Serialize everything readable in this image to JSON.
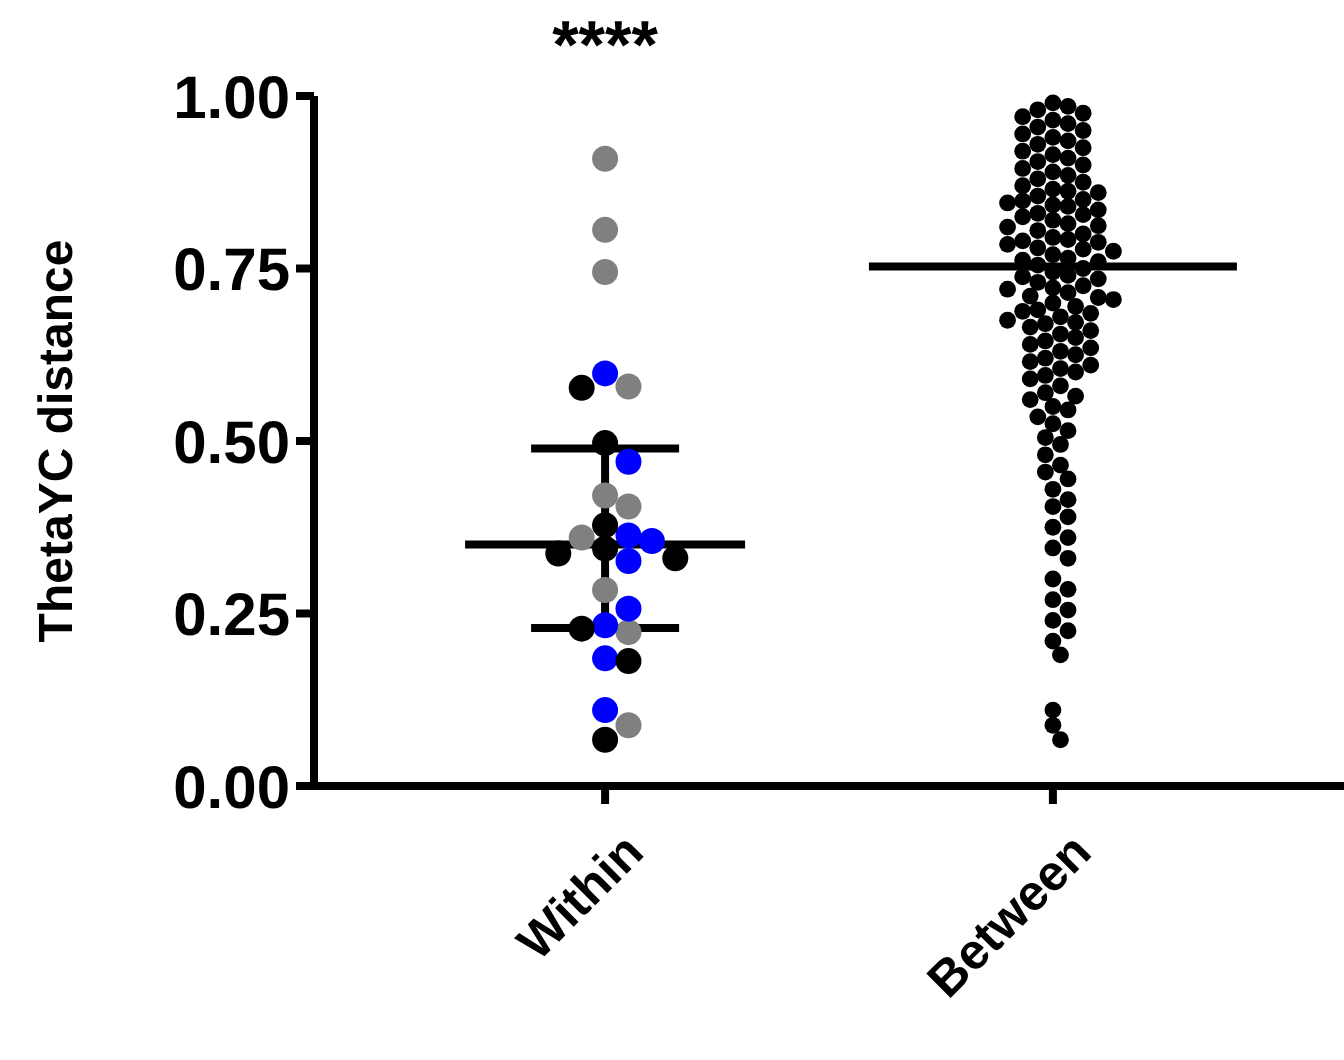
{
  "chart_data": {
    "type": "scatter",
    "ylabel": "ThetaYC distance",
    "categories": [
      "Within",
      "Between"
    ],
    "ylim": [
      0,
      1
    ],
    "yticks": [
      {
        "value": 0,
        "label": "0.00"
      },
      {
        "value": 0.25,
        "label": "0.25"
      },
      {
        "value": 0.5,
        "label": "0.50"
      },
      {
        "value": 0.75,
        "label": "0.75"
      },
      {
        "value": 1,
        "label": "1.00"
      }
    ],
    "grid": false,
    "legend": false,
    "marker": "circle",
    "annotations": [
      "****"
    ],
    "series": [
      {
        "type": "scatter",
        "color": "#808080",
        "x": [
          "Within",
          "Within",
          "Within",
          "Within",
          "Within",
          "Within",
          "Within",
          "Within",
          "Within",
          "Within"
        ],
        "values": [
          0.909,
          0.806,
          0.745,
          0.579,
          0.421,
          0.405,
          0.36,
          0.284,
          0.223,
          0.088
        ]
      },
      {
        "type": "scatter",
        "color": "#0000ff",
        "x": [
          "Within",
          "Within",
          "Within",
          "Within",
          "Within",
          "Within",
          "Within",
          "Within",
          "Within"
        ],
        "values": [
          0.598,
          0.47,
          0.363,
          0.355,
          0.326,
          0.257,
          0.233,
          0.185,
          0.11
        ]
      },
      {
        "type": "scatter",
        "color": "#000000",
        "x": [
          "Within",
          "Within",
          "Within",
          "Within",
          "Within",
          "Within",
          "Within",
          "Within",
          "Within"
        ],
        "values": [
          0.577,
          0.497,
          0.378,
          0.344,
          0.33,
          0.337,
          0.228,
          0.181,
          0.067
        ]
      },
      {
        "type": "scatter",
        "color": "#000000",
        "x": [
          "Between",
          "Between",
          "Between",
          "Between",
          "Between",
          "Between",
          "Between",
          "Between",
          "Between",
          "Between",
          "Between",
          "Between",
          "Between",
          "Between",
          "Between",
          "Between",
          "Between",
          "Between",
          "Between",
          "Between",
          "Between",
          "Between",
          "Between",
          "Between",
          "Between",
          "Between",
          "Between",
          "Between",
          "Between",
          "Between",
          "Between",
          "Between",
          "Between",
          "Between",
          "Between",
          "Between",
          "Between",
          "Between",
          "Between",
          "Between",
          "Between",
          "Between",
          "Between",
          "Between",
          "Between",
          "Between",
          "Between",
          "Between",
          "Between",
          "Between",
          "Between",
          "Between",
          "Between",
          "Between",
          "Between",
          "Between",
          "Between",
          "Between",
          "Between",
          "Between",
          "Between",
          "Between",
          "Between",
          "Between",
          "Between",
          "Between",
          "Between",
          "Between",
          "Between",
          "Between",
          "Between",
          "Between",
          "Between",
          "Between",
          "Between",
          "Between",
          "Between",
          "Between",
          "Between",
          "Between",
          "Between",
          "Between",
          "Between",
          "Between",
          "Between",
          "Between",
          "Between",
          "Between",
          "Between",
          "Between",
          "Between",
          "Between",
          "Between",
          "Between",
          "Between",
          "Between",
          "Between",
          "Between",
          "Between",
          "Between",
          "Between",
          "Between",
          "Between",
          "Between",
          "Between",
          "Between",
          "Between",
          "Between",
          "Between",
          "Between",
          "Between",
          "Between",
          "Between",
          "Between",
          "Between",
          "Between",
          "Between",
          "Between",
          "Between",
          "Between",
          "Between",
          "Between",
          "Between",
          "Between",
          "Between",
          "Between",
          "Between",
          "Between",
          "Between"
        ],
        "values": [
          0.99,
          0.985,
          0.98,
          0.975,
          0.97,
          0.965,
          0.96,
          0.955,
          0.95,
          0.945,
          0.94,
          0.935,
          0.93,
          0.925,
          0.92,
          0.915,
          0.91,
          0.905,
          0.9,
          0.895,
          0.89,
          0.885,
          0.88,
          0.875,
          0.87,
          0.865,
          0.86,
          0.855,
          0.85,
          0.848,
          0.862,
          0.845,
          0.84,
          0.835,
          0.83,
          0.825,
          0.82,
          0.815,
          0.81,
          0.805,
          0.8,
          0.842,
          0.828,
          0.812,
          0.795,
          0.79,
          0.785,
          0.78,
          0.775,
          0.77,
          0.765,
          0.76,
          0.755,
          0.75,
          0.792,
          0.778,
          0.762,
          0.788,
          0.745,
          0.74,
          0.735,
          0.73,
          0.725,
          0.72,
          0.715,
          0.71,
          0.705,
          0.7,
          0.738,
          0.722,
          0.708,
          0.695,
          0.69,
          0.685,
          0.68,
          0.675,
          0.67,
          0.665,
          0.66,
          0.655,
          0.65,
          0.688,
          0.672,
          0.645,
          0.64,
          0.635,
          0.63,
          0.625,
          0.62,
          0.615,
          0.61,
          0.605,
          0.6,
          0.595,
          0.59,
          0.58,
          0.57,
          0.565,
          0.56,
          0.55,
          0.545,
          0.535,
          0.525,
          0.515,
          0.505,
          0.495,
          0.48,
          0.465,
          0.455,
          0.445,
          0.43,
          0.415,
          0.405,
          0.39,
          0.375,
          0.36,
          0.345,
          0.33,
          0.3,
          0.285,
          0.27,
          0.255,
          0.24,
          0.225,
          0.21,
          0.19,
          0.11,
          0.088,
          0.067
        ]
      },
      {
        "type": "box",
        "color": "#000000",
        "boxes": [
          {
            "low": 0.229,
            "q1": 0.35,
            "median": 0.35,
            "q3": 0.35,
            "high": 0.489
          },
          {
            "low": 0.753,
            "q1": 0.753,
            "median": 0.753,
            "q3": 0.753,
            "high": 0.753
          }
        ]
      }
    ]
  }
}
